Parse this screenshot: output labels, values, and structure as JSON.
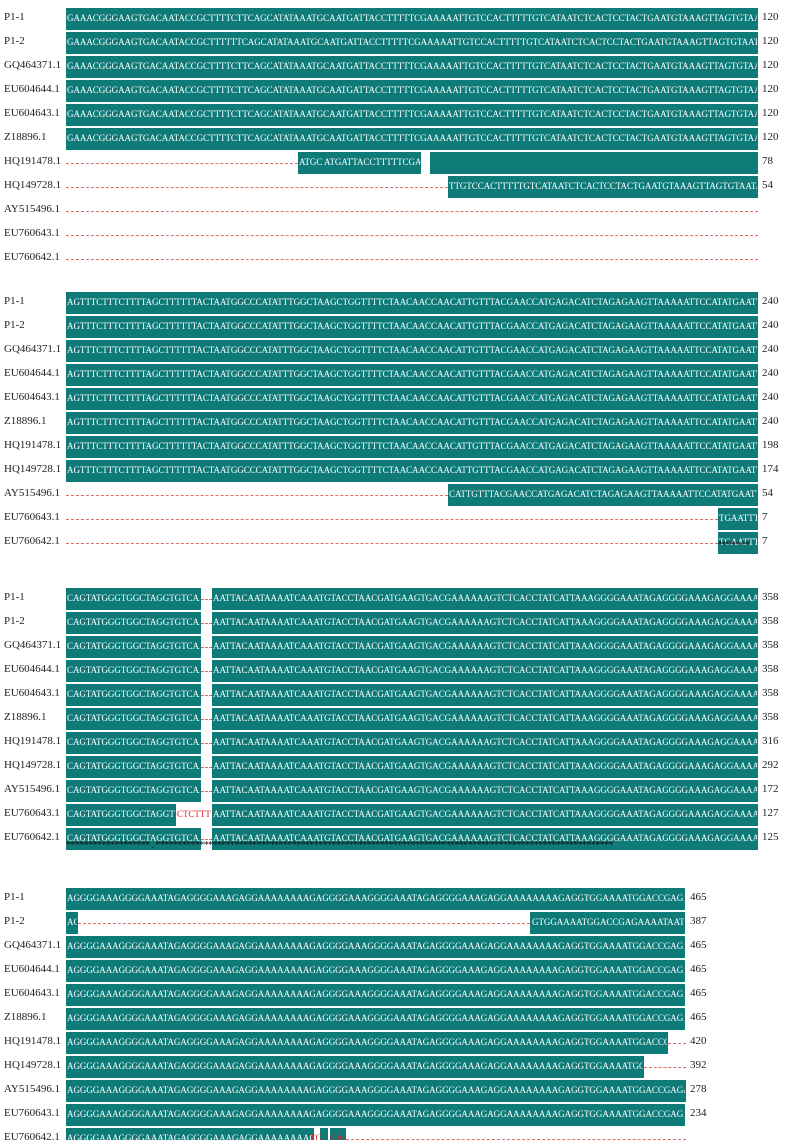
{
  "blocks": [
    {
      "id": "b1",
      "rows": [
        {
          "label": "P1-1",
          "seq": "GAAACGGGAAGTGACAATACCGCTTTTCTTCAGCATATAAATGCAATGATTACCTTTTTCGAAAAATTGTCCACTTTTTGTCATAATCTCACTCCTACTGAATGTAAAGTTAGTGTAATA",
          "end": "120"
        },
        {
          "label": "P1-2",
          "seq": "GAAACGGGAAGTGACAATACCGCTTTTTTCAGCATATAAATGCAATGATTACCTTTTTCGAAAAATTGTCCACTTTTTGTCATAATCTCACTCCTACTGAATGTAAAGTTAGTGTAATA",
          "end": "120"
        },
        {
          "label": "GQ464371.1",
          "seq": "GAAACGGGAAGTGACAATACCGCTTTTCTTCAGCATATAAATGCAATGATTACCTTTTTCGAAAAATTGTCCACTTTTTGTCATAATCTCACTCCTACTGAATGTAAAGTTAGTGTAATA",
          "end": "120"
        },
        {
          "label": "EU604644.1",
          "seq": "GAAACGGGAAGTGACAATACCGCTTTTCTTCAGCATATAAATGCAATGATTACCTTTTTCGAAAAATTGTCCACTTTTTGTCATAATCTCACTCCTACTGAATGTAAAGTTAGTGTAATA",
          "end": "120"
        },
        {
          "label": "EU604643.1",
          "seq": "GAAACGGGAAGTGACAATACCGCTTTTCTTCAGCATATAAATGCAATGATTACCTTTTTCGAAAAATTGTCCACTTTTTGTCATAATCTCACTCCTACTGAATGTAAAGTTAGTGTAATA",
          "end": "120"
        },
        {
          "label": "Z18896.1",
          "seq": "GAAACGGGAAGTGACAATACCGCTTTTCTTCAGCATATAAATGCAATGATTACCTTTTTCGAAAAATTGTCCACTTTTTGTCATAATCTCACTCCTACTGAATGTAAAGTTAGTGTAATA",
          "end": "120"
        },
        {
          "label": "HQ191478.1",
          "seq": "ATGC ATGATTACCTTTTTCGAA AATTGTCCACTTTTTGTCATAATCTCACTCCTACTGAATGTAAAGTTAGTGTAATA",
          "end": "78"
        },
        {
          "label": "HQ149728.1",
          "seq": "TTGTCCACTTTTTGTCATAATCTCACTCCTACTGAATGTAAAGTTAGTGTAATA",
          "end": "54"
        },
        {
          "label": "AY515496.1",
          "seq": "",
          "end": ""
        },
        {
          "label": "EU760643.1",
          "seq": "",
          "end": ""
        },
        {
          "label": "EU760642.1",
          "seq": "",
          "end": ""
        }
      ],
      "consensus": ""
    },
    {
      "id": "b2",
      "rows": [
        {
          "label": "P1-1",
          "seq": "AGTTTCTTTCTTTTAGCTTTTTTACTAATGGCCCATATTTGGCTAAGCTGGTTTTCTAACAACCAACATTGTTTACGAACCATGAGACATCTAGAGAAGTTAAAAATTCCATATGAATTT",
          "end": "240"
        },
        {
          "label": "P1-2",
          "seq": "AGTTTCTTTCTTTTAGCTTTTTTACTAATGGCCCATATTTGGCTAAGCTGGTTTTCTAACAACCAACATTGTTTACGAACCATGAGACATCTAGAGAAGTTAAAAATTCCATATGAATTT",
          "end": "240"
        },
        {
          "label": "GQ464371.1",
          "seq": "AGTTTCTTTCTTTTAGCTTTTTTACTAATGGCCCATATTTGGCTAAGCTGGTTTTCTAACAACCAACATTGTTTACGAACCATGAGACATCTAGAGAAGTTAAAAATTCCATATGAATTT",
          "end": "240"
        },
        {
          "label": "EU604644.1",
          "seq": "AGTTTCTTTCTTTTAGCTTTTTTACTAATGGCCCATATTTGGCTAAGCTGGTTTTCTAACAACCAACATTGTTTACGAACCATGAGACATCTAGAGAAGTTAAAAATTCCATATGAATTT",
          "end": "240"
        },
        {
          "label": "EU604643.1",
          "seq": "AGTTTCTTTCTTTTAGCTTTTTTACTAATGGCCCATATTTGGCTAAGCTGGTTTTCTAACAACCAACATTGTTTACGAACCATGAGACATCTAGAGAAGTTAAAAATTCCATATGAATTT",
          "end": "240"
        },
        {
          "label": "Z18896.1",
          "seq": "AGTTTCTTTCTTTTAGCTTTTTTACTAATGGCCCATATTTGGCTAAGCTGGTTTTCTAACAACCAACATTGTTTACGAACCATGAGACATCTAGAGAAGTTAAAAATTCCATATGAATTT",
          "end": "240"
        },
        {
          "label": "HQ191478.1",
          "seq": "AGTTTCTTTCTTTTAGCTTTTTTACTAATGGCCCATATTTGGCTAAGCTGGTTTTCTAACAACCAACATTGTTTACGAACCATGAGACATCTAGAGAAGTTAAAAATTCCATATGAATTT",
          "end": "198"
        },
        {
          "label": "HQ149728.1",
          "seq": "AGTTTCTTTCTTTTAGCTTTTTTACTAATGGCCCATATTTGGCTAAGCTGGTTTTCTAACAACCAACATTGTTTACGAACCATGAGACATCTAGAGAAGTTAAAAATTCCATATGAATTT",
          "end": "174"
        },
        {
          "label": "AY515496.1",
          "seq": "CATTGTTTACGAACCATGAGACATCTAGAGAAGTTAAAAATTCCATATGAATTT",
          "end": "54"
        },
        {
          "label": "EU760643.1",
          "seq": "TGAATTT",
          "end": "7"
        },
        {
          "label": "EU760642.1",
          "seq": "TGAATTT",
          "end": "7"
        }
      ],
      "consensus": "*******"
    },
    {
      "id": "b3",
      "rows": [
        {
          "label": "P1-1",
          "seq": "CAGTATGGGTGGCTAGGTGTCAA",
          "seq2": "AATTACAATAAAATCAAATGTACCTAACGATGAAGTGACGAAAAAAGTCTCACCTATCATTAAAGGGGAAATAGAGGGGAAAGAGGAAAAAAAAG",
          "end": "358"
        },
        {
          "label": "P1-2",
          "seq": "CAGTATGGGTGGCTAGGTGTCAA",
          "seq2": "AATTACAATAAAATCAAATGTACCTAACGATGAAGTGACGAAAAAAGTCTCACCTATCATTAAAGGGGAAATAGAGGGGAAAGAGGAAAAAAAAG",
          "end": "358"
        },
        {
          "label": "GQ464371.1",
          "seq": "CAGTATGGGTGGCTAGGTGTCAA",
          "seq2": "AATTACAATAAAATCAAATGTACCTAACGATGAAGTGACGAAAAAAGTCTCACCTATCATTAAAGGGGAAATAGAGGGGAAAGAGGAAAAAAAAG",
          "end": "358"
        },
        {
          "label": "EU604644.1",
          "seq": "CAGTATGGGTGGCTAGGTGTCAA",
          "seq2": "AATTACAATAAAATCAAATGTACCTAACGATGAAGTGACGAAAAAAGTCTCACCTATCATTAAAGGGGAAATAGAGGGGAAAGAGGAAAAAAAAG",
          "end": "358"
        },
        {
          "label": "EU604643.1",
          "seq": "CAGTATGGGTGGCTAGGTGTCAA",
          "seq2": "AATTACAATAAAATCAAATGTACCTAACGATGAAGTGACGAAAAAAGTCTCACCTATCATTAAAGGGGAAATAGAGGGGAAAGAGGAAAAAAAAG",
          "end": "358"
        },
        {
          "label": "Z18896.1",
          "seq": "CAGTATGGGTGGCTAGGTGTCAA",
          "seq2": "AATTACAATAAAATCAAATGTACCTAACGATGAAGTGACGAAAAAAGTCTCACCTATCATTAAAGGGGAAATAGAGGGGAAAGAGGAAAAAAAAG",
          "end": "358"
        },
        {
          "label": "HQ191478.1",
          "seq": "CAGTATGGGTGGCTAGGTGTCAA",
          "seq2": "AATTACAATAAAATCAAATGTACCTAACGATGAAGTGACGAAAAAAGTCTCACCTATCATTAAAGGGGAAATAGAGGGGAAAGAGGAAAAAAAAG",
          "end": "316"
        },
        {
          "label": "HQ149728.1",
          "seq": "CAGTATGGGTGGCTAGGTGTCAA",
          "seq2": "AATTACAATAAAATCAAATGTACCTAACGATGAAGTGACGAAAAAAGTCTCACCTATCATTAAAGGGGAAATAGAGGGGAAAGAGGAAAAAAAAG",
          "end": "292"
        },
        {
          "label": "AY515496.1",
          "seq": "CAGTATGGGTGGCTAGGTGTCAA",
          "seq2": "AATTACAATAAAATCAAATGTACCTAACGATGAAGTGACGAAAAAAGTCTCACCTATCATTAAAGGGGAAATAGAGGGGAAAGAGGAAAAAAAAG",
          "end": "172"
        },
        {
          "label": "EU760643.1",
          "seq": "CAGTATGGGTGGCTAGGTG",
          "red": "CTCTTT",
          "seq2": "AATTACAATAAAATCAAATGTACCTAACGATGAAGTGACGAAAAAAGTCTCACCTATCATTAAAGGGGAAATAGAGGGGAAAGAGGAAAAAAAAG",
          "end": "127"
        },
        {
          "label": "EU760642.1",
          "seq": "CAGTATGGGTGGCTAGGTGTCAA",
          "seq2": "AATTACAATAAAATCAAATGTACCTAACGATGAAGTGACGAAAAAAGTCTCACCTATCATTAAAGGGGAAATAGAGGGGAAAGAGGAAAAAAAAG",
          "end": "125"
        }
      ],
      "consensus": "*******************        .        ********************************************************************************************************"
    },
    {
      "id": "b4",
      "rows": [
        {
          "label": "P1-1",
          "seq": "AGGGGAAAGGGGAAATAGAGGGGAAAGAGGAAAAAAAAGAGGGGAAAGGGGAAATAGAGGGGAAAGAGGAAAAAAAAGAGGTGGAAAATGGACCGAGAAAATAATGC",
          "end": "465"
        },
        {
          "label": "P1-2",
          "seq": "AG",
          "seq2": "GTGGAAAATGGACCGAGAAAATAATGC",
          "end": "387"
        },
        {
          "label": "GQ464371.1",
          "seq": "AGGGGAAAGGGGAAATAGAGGGGAAAGAGGAAAAAAAAGAGGGGAAAGGGGAAATAGAGGGGAAAGAGGAAAAAAAAGAGGTGGAAAATGGACCGAGAAAATAATGC",
          "end": "465"
        },
        {
          "label": "EU604644.1",
          "seq": "AGGGGAAAGGGGAAATAGAGGGGAAAGAGGAAAAAAAAGAGGGGAAAGGGGAAATAGAGGGGAAAGAGGAAAAAAAAGAGGTGGAAAATGGACCGAGAAAATAATGC",
          "end": "465"
        },
        {
          "label": "EU604643.1",
          "seq": "AGGGGAAAGGGGAAATAGAGGGGAAAGAGGAAAAAAAAGAGGGGAAAGGGGAAATAGAGGGGAAAGAGGAAAAAAAAGAGGTGGAAAATGGACCGAGAAAATAATGC",
          "end": "465"
        },
        {
          "label": "Z18896.1",
          "seq": "AGGGGAAAGGGGAAATAGAGGGGAAAGAGGAAAAAAAAGAGGGGAAAGGGGAAATAGAGGGGAAAGAGGAAAAAAAAGAGGTGGAAAATGGACCGAGAAAATAATGC",
          "end": "465"
        },
        {
          "label": "HQ191478.1",
          "seq": "AGGGGAAAGGGGAAATAGAGGGGAAAGAGGAAAAAAAAGAGGGGAAAGGGGAAATAGAGGGGAAAGAGGAAAAAAAAGAGGTGGAAAATGGACCGAGAAAATAA",
          "end": "420"
        },
        {
          "label": "HQ149728.1",
          "seq": "AGGGGAAAGGGGAAATAGAGGGGAAAGAGGAAAAAAAAGAGGGGAAAGGGGAAATAGAGGGGAAAGAGGAAAAAAAAGAGGTGGAAAATGGACCGAGAAA",
          "end": "392"
        },
        {
          "label": "AY515496.1",
          "seq": "AGGGGAAAGGGGAAATAGAGGGGAAAGAGGAAAAAAAAGAGGGGAAAGGGGAAATAGAGGGGAAAGAGGAAAAAAAAGAGGTGGAAAATGGACCGAGAAAATAATGC",
          "end": "278"
        },
        {
          "label": "EU760643.1",
          "seq": "AGGGGAAAGGGGAAATAGAGGGGAAAGAGGAAAAAAAAGAGGGGAAAGGGGAAATAGAGGGGAAAGAGGAAAAAAAAGAGGTGGAAAATGGACCGAGAAAATAATGC",
          "end": "234"
        },
        {
          "label": "EU760642.1",
          "seq": "AGGGGAAAGGGGAAATAGAGGGGAAAGAGGAAAAAAAAGAGG",
          "red": "TG",
          "seq2": "GAAA",
          "end": ""
        }
      ],
      "consensus": ""
    }
  ],
  "colors": {
    "identity": "#0f7b78",
    "gap": "#e36b6b",
    "mismatch": "#e02020"
  }
}
